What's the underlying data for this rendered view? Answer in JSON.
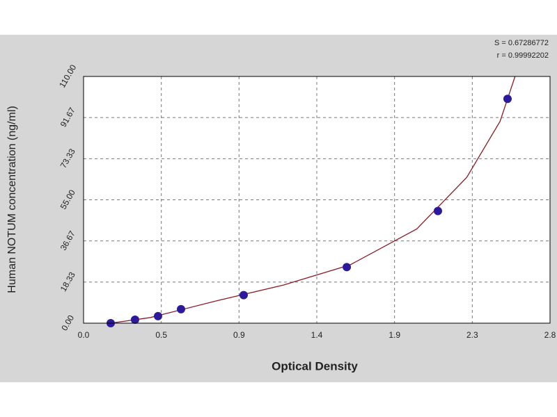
{
  "chart_data": {
    "type": "scatter",
    "xlabel": "Optical Density",
    "ylabel": "Human NOTUM concentration (ng/ml)",
    "annotations": [
      "S = 0.67286772",
      "r = 0.99992202"
    ],
    "series": [
      {
        "color": "#2b1b9c",
        "x": [
          0.163,
          0.309,
          0.447,
          0.585,
          0.961,
          1.58,
          2.127,
          2.545
        ],
        "values": [
          0,
          1.56,
          3.13,
          6.25,
          12.5,
          25,
          50,
          100
        ]
      }
    ],
    "fit": {
      "color": "#8b1c24",
      "x": [
        0.163,
        0.4,
        0.8,
        1.2,
        1.6,
        2.0,
        2.3,
        2.5,
        2.59
      ],
      "values": [
        0,
        2.5,
        10,
        17,
        26,
        42,
        65,
        90,
        110
      ]
    },
    "xlim": [
      0,
      2.8
    ],
    "xticks": [
      {
        "value": 0,
        "label": "0.0"
      },
      {
        "value": 0.4667,
        "label": "0.5"
      },
      {
        "value": 0.9333,
        "label": "0.9"
      },
      1.4,
      {
        "value": 1.8667,
        "label": "1.9"
      },
      {
        "value": 2.3333,
        "label": "2.3"
      },
      2.8
    ],
    "ylim": [
      0,
      110
    ],
    "yticks": [
      {
        "value": 0,
        "label": "0.00"
      },
      18.33,
      36.67,
      {
        "value": 55,
        "label": "55.00"
      },
      73.33,
      91.67,
      {
        "value": 110,
        "label": "110.00"
      }
    ],
    "grid": true
  }
}
